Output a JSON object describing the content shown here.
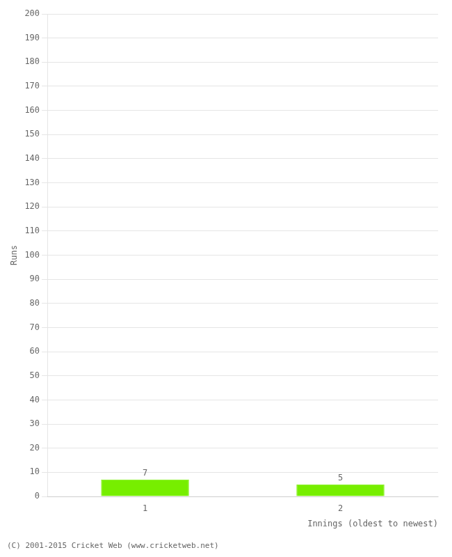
{
  "chart_data": {
    "type": "bar",
    "categories": [
      "1",
      "2"
    ],
    "values": [
      7,
      5
    ],
    "color": "#77ee00",
    "xlabel": "Innings (oldest to newest)",
    "ylabel": "Runs",
    "ylim": [
      0,
      200
    ],
    "yticks": [
      0,
      10,
      20,
      30,
      40,
      50,
      60,
      70,
      80,
      90,
      100,
      110,
      120,
      130,
      140,
      150,
      160,
      170,
      180,
      190,
      200
    ],
    "grid": true,
    "data_labels": true,
    "annotations": [
      "(C) 2001-2015 Cricket Web (www.cricketweb.net)"
    ]
  }
}
